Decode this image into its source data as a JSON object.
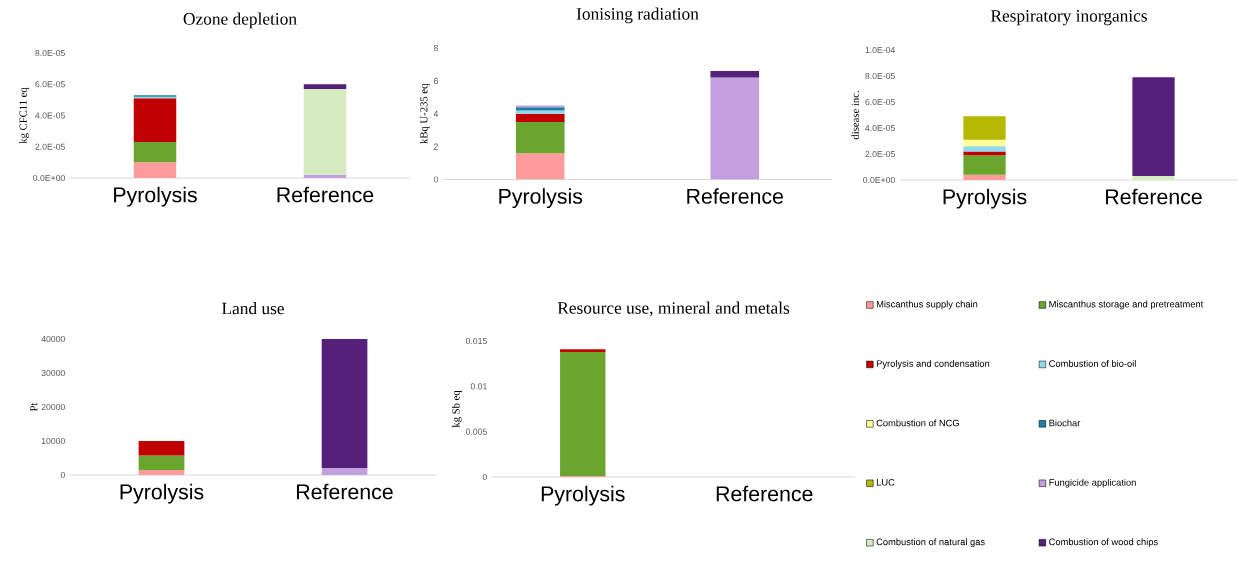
{
  "chart_data": [
    {
      "type": "bar",
      "stacked": true,
      "title": "Ozone depletion",
      "ylabel": "kg CFC11 eq",
      "categories": [
        "Pyrolysis",
        "Reference"
      ],
      "ylim": [
        0,
        8e-05
      ],
      "yticks": [
        {
          "value": 0,
          "label": "0.0E+00"
        },
        {
          "value": 2e-05,
          "label": "2.0E-05"
        },
        {
          "value": 4e-05,
          "label": "4.0E-05"
        },
        {
          "value": 6e-05,
          "label": "6.0E-05"
        },
        {
          "value": 8e-05,
          "label": "8.0E-05"
        }
      ],
      "series": [
        {
          "color": "#ff9b9b",
          "values": [
            1e-05,
            null
          ]
        },
        {
          "color": "#6aa62e",
          "values": [
            1.3e-05,
            null
          ]
        },
        {
          "color": "#c00000",
          "values": [
            2.8e-05,
            null
          ]
        },
        {
          "color": "#8fd8f0",
          "values": [
            1e-06,
            null
          ]
        },
        {
          "color": "#1f7fa0",
          "values": [
            1e-06,
            null
          ]
        },
        {
          "color": "#c49fdf",
          "values": [
            null,
            2e-06
          ]
        },
        {
          "color": "#d4ecc0",
          "values": [
            null,
            5.5e-05
          ]
        },
        {
          "color": "#54207a",
          "values": [
            null,
            3e-06
          ]
        }
      ]
    },
    {
      "type": "bar",
      "stacked": true,
      "title": "Ionising radiation",
      "ylabel": "kBq U-235 eq",
      "categories": [
        "Pyrolysis",
        "Reference"
      ],
      "ylim": [
        0,
        8
      ],
      "yticks": [
        0,
        2,
        4,
        6,
        8
      ],
      "series": [
        {
          "color": "#ff9b9b",
          "values": [
            1.6,
            null
          ]
        },
        {
          "color": "#6aa62e",
          "values": [
            1.9,
            null
          ]
        },
        {
          "color": "#c00000",
          "values": [
            0.5,
            null
          ]
        },
        {
          "color": "#8fd8f0",
          "values": [
            0.2,
            null
          ]
        },
        {
          "color": "#1f7fa0",
          "values": [
            0.2,
            null
          ]
        },
        {
          "color": "#c49fdf",
          "values": [
            0.1,
            6.2
          ]
        },
        {
          "color": "#54207a",
          "values": [
            null,
            0.4
          ]
        }
      ]
    },
    {
      "type": "bar",
      "stacked": true,
      "title": "Respiratory inorganics",
      "ylabel": "disease inc.",
      "categories": [
        "Pyrolysis",
        "Reference"
      ],
      "ylim": [
        0,
        0.0001
      ],
      "yticks": [
        {
          "value": 0,
          "label": "0.0E+00"
        },
        {
          "value": 2e-05,
          "label": "2.0E-05"
        },
        {
          "value": 4e-05,
          "label": "4.0E-05"
        },
        {
          "value": 6e-05,
          "label": "6.0E-05"
        },
        {
          "value": 8e-05,
          "label": "8.0E-05"
        },
        {
          "value": 0.0001,
          "label": "1.0E-04"
        }
      ],
      "series": [
        {
          "color": "#ff9b9b",
          "values": [
            4e-06,
            null
          ]
        },
        {
          "color": "#6aa62e",
          "values": [
            1.5e-05,
            null
          ]
        },
        {
          "color": "#c00000",
          "values": [
            3e-06,
            null
          ]
        },
        {
          "color": "#8fd8f0",
          "values": [
            4e-06,
            null
          ]
        },
        {
          "color": "#ffff99",
          "values": [
            5e-06,
            null
          ]
        },
        {
          "color": "#b5b800",
          "values": [
            1.8e-05,
            null
          ]
        },
        {
          "color": "#d4ecc0",
          "values": [
            null,
            3e-06
          ]
        },
        {
          "color": "#54207a",
          "values": [
            null,
            7.6e-05
          ]
        }
      ]
    },
    {
      "type": "bar",
      "stacked": true,
      "title": "Land use",
      "ylabel": "Pt",
      "categories": [
        "Pyrolysis",
        "Reference"
      ],
      "ylim": [
        0,
        40000
      ],
      "yticks": [
        0,
        10000,
        20000,
        30000,
        40000
      ],
      "series": [
        {
          "color": "#ff9b9b",
          "values": [
            1500,
            null
          ]
        },
        {
          "color": "#6aa62e",
          "values": [
            4200,
            null
          ]
        },
        {
          "color": "#c00000",
          "values": [
            4300,
            null
          ]
        },
        {
          "color": "#c49fdf",
          "values": [
            null,
            2000
          ]
        },
        {
          "color": "#54207a",
          "values": [
            null,
            38000
          ]
        }
      ]
    },
    {
      "type": "bar",
      "stacked": true,
      "title": "Resource use, mineral and metals",
      "ylabel": "kg Sb eq",
      "categories": [
        "Pyrolysis",
        "Reference"
      ],
      "ylim": [
        0,
        0.015
      ],
      "yticks": [
        0,
        0.005,
        0.01,
        0.015
      ],
      "legend": "right",
      "series": [
        {
          "name": "Miscanthus supply chain",
          "color": "#ff9b9b",
          "values": [
            0.0001,
            null
          ]
        },
        {
          "name": "Miscanthus storage and pretreatment",
          "color": "#6aa62e",
          "values": [
            0.0137,
            null
          ]
        },
        {
          "name": "Pyrolysis and condensation",
          "color": "#c00000",
          "values": [
            0.0003,
            null
          ]
        },
        {
          "name": "Combustion of bio-oil",
          "color": "#8fd8f0",
          "values": [
            null,
            null
          ]
        },
        {
          "name": "Combustion of NCG",
          "color": "#ffff99",
          "values": [
            null,
            null
          ]
        },
        {
          "name": "Biochar",
          "color": "#1f7fa0",
          "values": [
            null,
            null
          ]
        },
        {
          "name": "LUC",
          "color": "#b5b800",
          "values": [
            null,
            null
          ]
        },
        {
          "name": "Fungicide application",
          "color": "#c49fdf",
          "values": [
            null,
            null
          ]
        },
        {
          "name": "Combustion of natural gas",
          "color": "#d4ecc0",
          "values": [
            null,
            null
          ]
        },
        {
          "name": "Combustion of wood chips",
          "color": "#54207a",
          "values": [
            null,
            null
          ]
        }
      ]
    }
  ]
}
